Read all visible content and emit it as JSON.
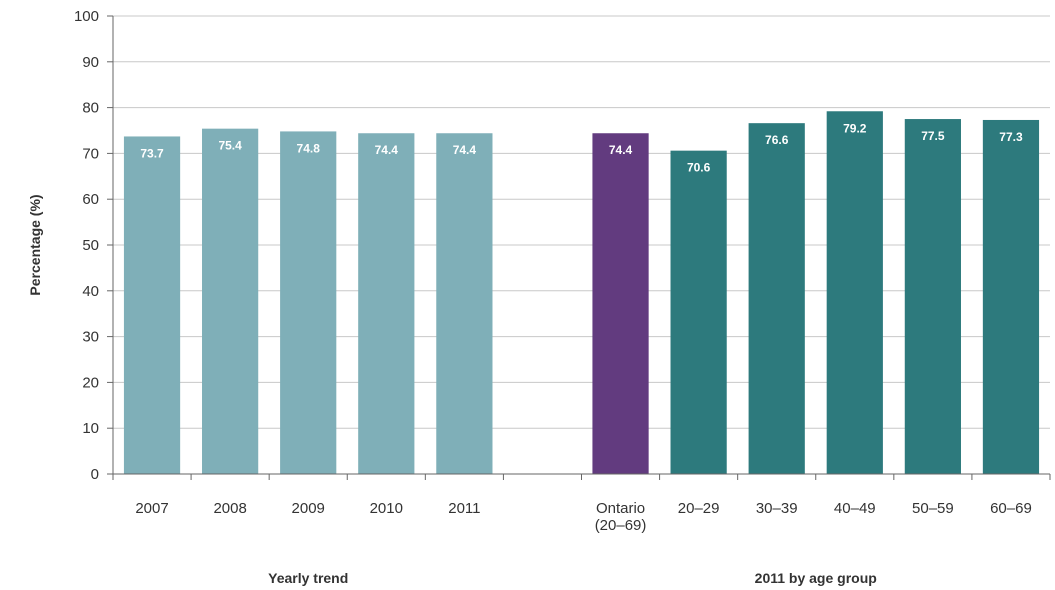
{
  "chart_data": {
    "type": "bar",
    "ylabel": "Percentage (%)",
    "ylim": [
      0,
      100
    ],
    "yticks": [
      0,
      10,
      20,
      30,
      40,
      50,
      60,
      70,
      80,
      90,
      100
    ],
    "grid": true,
    "groups": [
      {
        "label": "Yearly trend",
        "categories": [
          [
            "2007"
          ],
          [
            "2008"
          ],
          [
            "2009"
          ],
          [
            "2010"
          ],
          [
            "2011"
          ]
        ],
        "values": [
          73.7,
          75.4,
          74.8,
          74.4,
          74.4
        ],
        "color": "#7fafb8"
      },
      {
        "label": "2011 by age group",
        "categories": [
          [
            "Ontario",
            "(20–69)"
          ],
          [
            "20–29"
          ],
          [
            "30–39"
          ],
          [
            "40–49"
          ],
          [
            "50–59"
          ],
          [
            "60–69"
          ]
        ],
        "values": [
          74.4,
          70.6,
          76.6,
          79.2,
          77.5,
          77.3
        ],
        "colors": [
          "#623b7f",
          "#2d7a7d",
          "#2d7a7d",
          "#2d7a7d",
          "#2d7a7d",
          "#2d7a7d"
        ]
      }
    ]
  }
}
